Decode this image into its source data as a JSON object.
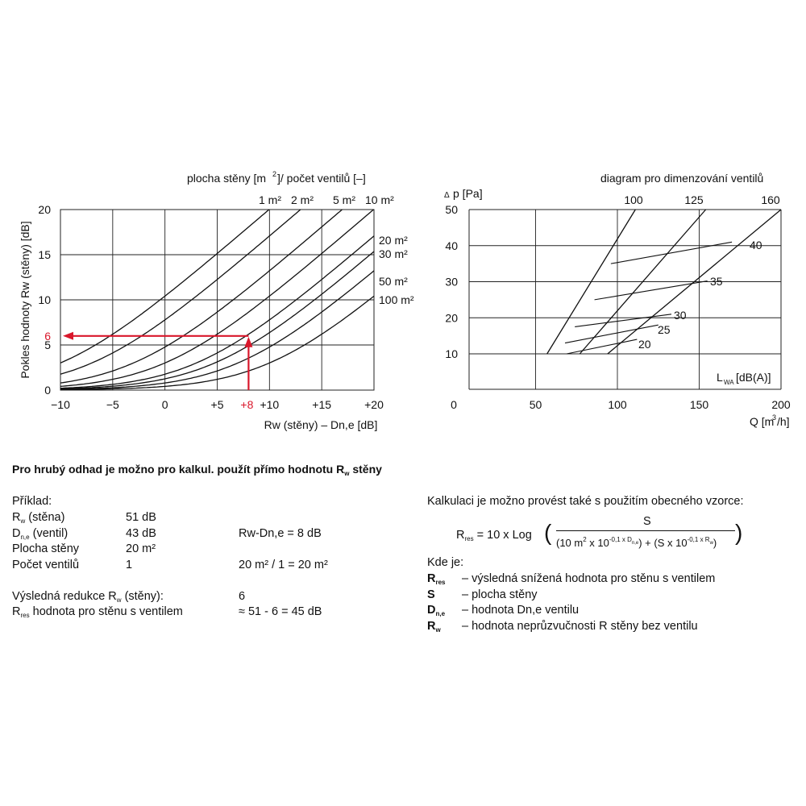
{
  "chart_data": [
    {
      "type": "line",
      "title": "plocha stěny [m²]/počet ventilů [–]",
      "xlabel": "Rw (stěny) – Dn,e [dB]",
      "ylabel": "Pokles hodnoty Rw (stěny) [dB]",
      "xlim": [
        -10,
        20
      ],
      "ylim": [
        0,
        20
      ],
      "x_ticks": [
        "−10",
        "−5",
        "0",
        "+5",
        "+10",
        "+15",
        "+20"
      ],
      "y_ticks": [
        "0",
        "5",
        "10",
        "15",
        "20"
      ],
      "x_ticks_values": [
        -10,
        -5,
        0,
        5,
        10,
        15,
        20
      ],
      "y_ticks_values": [
        0,
        5,
        10,
        15,
        20
      ],
      "grid": true,
      "series": [
        {
          "name": "1 m²",
          "area": 1
        },
        {
          "name": "2 m²",
          "area": 2
        },
        {
          "name": "5 m²",
          "area": 5
        },
        {
          "name": "10 m²",
          "area": 10
        },
        {
          "name": "20 m²",
          "area": 20
        },
        {
          "name": "30 m²",
          "area": 30
        },
        {
          "name": "50 m²",
          "area": 50
        },
        {
          "name": "100 m²",
          "area": 100
        }
      ],
      "annotation": {
        "x": 8,
        "y": 6,
        "x_label": "+8",
        "y_label": "6",
        "color": "#d9172b"
      }
    },
    {
      "type": "line",
      "title": "diagram pro dimenzování ventilů",
      "xlabel": "Q [m³/h]",
      "ylabel": "Δp [Pa]",
      "xlim": [
        0,
        200
      ],
      "ylim": [
        0,
        50
      ],
      "x_ticks": [
        "0",
        "50",
        "100",
        "150",
        "200"
      ],
      "y_ticks": [
        "10",
        "20",
        "30",
        "40",
        "50"
      ],
      "x_ticks_values": [
        0,
        50,
        100,
        150,
        200
      ],
      "y_ticks_values": [
        10,
        20,
        30,
        40,
        50
      ],
      "grid": true,
      "series": [
        {
          "name": "100",
          "x": [
            57,
            111
          ],
          "y": [
            10,
            50
          ]
        },
        {
          "name": "125",
          "x": [
            77,
            154
          ],
          "y": [
            10,
            50
          ]
        },
        {
          "name": "160",
          "x": [
            94,
            200
          ],
          "y": [
            10,
            50
          ]
        }
      ],
      "lwa_series": [
        {
          "name": "40",
          "x": [
            96,
            170
          ],
          "y": [
            35,
            41
          ]
        },
        {
          "name": "35",
          "x": [
            86,
            155
          ],
          "y": [
            25,
            30.2
          ]
        },
        {
          "name": "30",
          "x": [
            74,
            133
          ],
          "y": [
            17.5,
            21
          ]
        },
        {
          "name": "25",
          "x": [
            68,
            125
          ],
          "y": [
            13,
            18
          ]
        },
        {
          "name": "20",
          "x": [
            69,
            112
          ],
          "y": [
            10,
            14
          ]
        }
      ],
      "lwa_label": "LWA [dB(A)]"
    }
  ],
  "text": {
    "heading_pre": "Pro hrubý odhad je možno pro kalkul. použít přímo hodnotu R",
    "heading_sub": "w",
    "heading_post": " stěny",
    "example_title": "Příklad:",
    "rows": [
      {
        "label": "R",
        "label_sub": "w",
        "label_post": " (stěna)",
        "value": "51 dB",
        "calc": ""
      },
      {
        "label": "D",
        "label_sub": "n,e",
        "label_post": " (ventil)",
        "value": "43 dB",
        "calc": "Rw-Dn,e = 8 dB"
      },
      {
        "label": "Plocha stěny",
        "label_sub": "",
        "label_post": "",
        "value": "20 m²",
        "calc": ""
      },
      {
        "label": "Počet ventilů",
        "label_sub": "",
        "label_post": "",
        "value": "1",
        "calc": "20 m² / 1 = 20 m²"
      }
    ],
    "result1_pre": "Výsledná redukce R",
    "result1_sub": "w",
    "result1_post": " (stěny):",
    "result1_value": "6",
    "result2_pre": "R",
    "result2_sub": "res",
    "result2_post": " hodnota pro stěnu s ventilem",
    "result2_value": "≈ 51 - 6 = 45 dB",
    "calc_intro": "Kalkulaci je možno provést také s použitím obecného vzorce:",
    "formula_lhs": "= 10 x Log",
    "formula_num": "S",
    "kde_je": "Kde je:",
    "legend": [
      {
        "sym": "R",
        "sub": "res",
        "desc": "– výsledná snížená hodnota pro stěnu s ventilem"
      },
      {
        "sym": "S",
        "sub": "",
        "desc": "– plocha stěny"
      },
      {
        "sym": "D",
        "sub": "n,e",
        "desc": "– hodnota Dn,e ventilu"
      },
      {
        "sym": "R",
        "sub": "w",
        "desc": "– hodnota neprůzvučnosti R stěny bez ventilu"
      }
    ]
  }
}
